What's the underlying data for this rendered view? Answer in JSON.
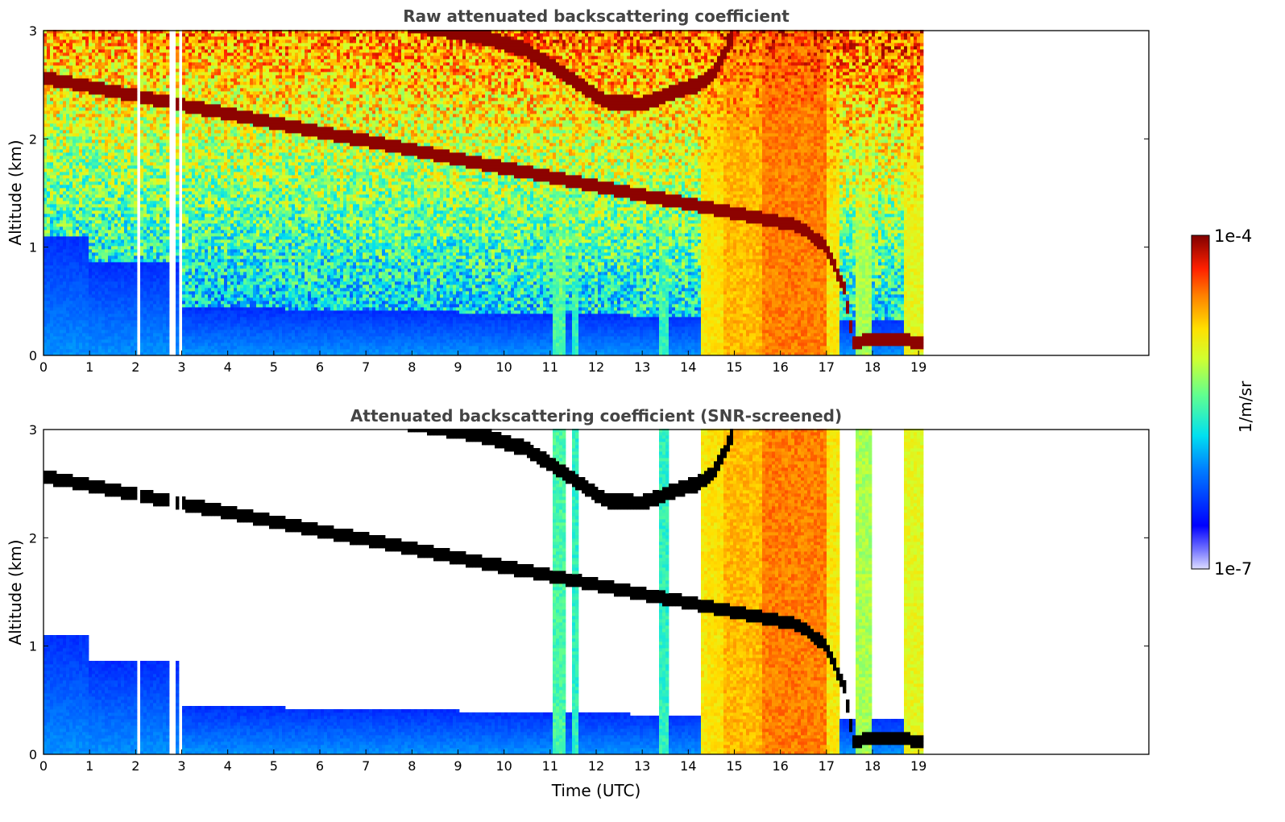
{
  "chart_data": [
    {
      "type": "heatmap",
      "title": "Raw attenuated backscattering coefficient",
      "ylabel": "Altitude (km)",
      "xlabel": "",
      "xlim": [
        0,
        24
      ],
      "ylim": [
        0,
        3
      ],
      "xticks": [
        0,
        1,
        2,
        3,
        4,
        5,
        6,
        7,
        8,
        9,
        10,
        11,
        12,
        13,
        14,
        15,
        16,
        17,
        18,
        19
      ],
      "yticks": [
        0,
        1,
        2,
        3
      ],
      "data_end_time": 19.1,
      "masked": false
    },
    {
      "type": "heatmap",
      "title": "Attenuated backscattering coefficient (SNR-screened)",
      "ylabel": "Altitude (km)",
      "xlabel": "Time (UTC)",
      "xlim": [
        0,
        24
      ],
      "ylim": [
        0,
        3
      ],
      "xticks": [
        0,
        1,
        2,
        3,
        4,
        5,
        6,
        7,
        8,
        9,
        10,
        11,
        12,
        13,
        14,
        15,
        16,
        17,
        18,
        19
      ],
      "yticks": [
        0,
        1,
        2,
        3
      ],
      "data_end_time": 19.1,
      "masked": true
    }
  ],
  "colorbar": {
    "label": "1/m/sr",
    "max_label": "1e-4",
    "min_label": "1e-7",
    "scale": "log",
    "colormap": "jet"
  }
}
